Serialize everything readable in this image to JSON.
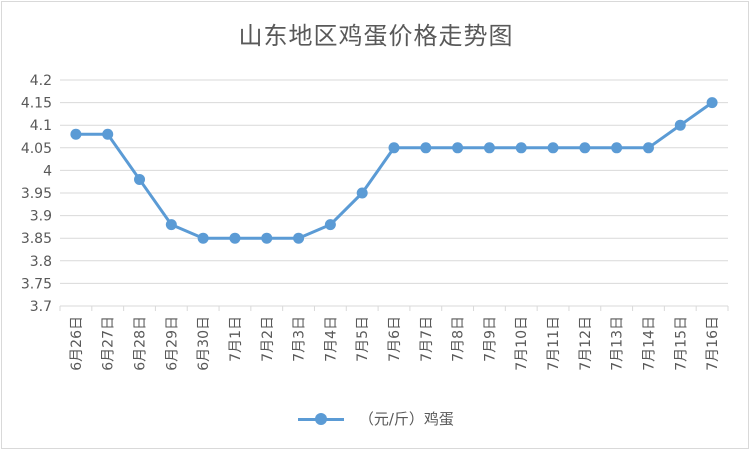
{
  "chart_data": {
    "type": "line",
    "title": "山东地区鸡蛋价格走势图",
    "xlabel": "",
    "ylabel": "",
    "categories": [
      "6月26日",
      "6月27日",
      "6月28日",
      "6月29日",
      "6月30日",
      "7月1日",
      "7月2日",
      "7月3日",
      "7月4日",
      "7月5日",
      "7月6日",
      "7月7日",
      "7月8日",
      "7月9日",
      "7月10日",
      "7月11日",
      "7月12日",
      "7月13日",
      "7月14日",
      "7月15日",
      "7月16日"
    ],
    "series": [
      {
        "name": "（元/斤）鸡蛋",
        "color": "#5b9bd5",
        "values": [
          4.08,
          4.08,
          3.98,
          3.88,
          3.85,
          3.85,
          3.85,
          3.85,
          3.88,
          3.95,
          4.05,
          4.05,
          4.05,
          4.05,
          4.05,
          4.05,
          4.05,
          4.05,
          4.05,
          4.1,
          4.15
        ]
      }
    ],
    "ylim": [
      3.7,
      4.2
    ],
    "yticks": [
      "3.7",
      "3.75",
      "3.8",
      "3.85",
      "3.9",
      "3.95",
      "4",
      "4.05",
      "4.1",
      "4.15",
      "4.2"
    ],
    "grid": true,
    "legend_position": "bottom"
  }
}
